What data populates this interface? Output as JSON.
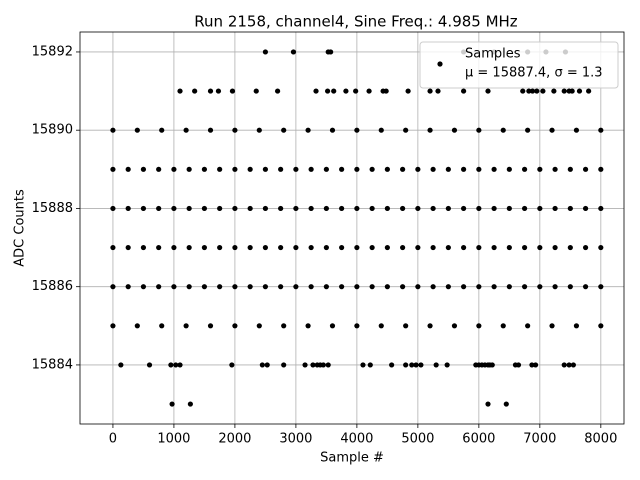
{
  "chart_data": {
    "type": "scatter",
    "title": "Run 2158, channel4, Sine Freq.: 4.985 MHz",
    "x_label": "Sample #",
    "y_label": "ADC Counts",
    "legend_note": "μ = 15887.4, σ = 1.3",
    "legend_position": "upper right",
    "grid": true,
    "xlim": [
      -540,
      8380
    ],
    "xticks": [
      0,
      1000,
      2000,
      3000,
      4000,
      5000,
      6000,
      7000,
      8000
    ],
    "ylim": [
      15882.49,
      15892.51
    ],
    "yticks": [
      15884,
      15886,
      15888,
      15890,
      15892
    ],
    "series": [
      {
        "name": "Samples",
        "color": "#000000",
        "x": [
          0,
          250,
          500,
          750,
          1000,
          1250,
          1500,
          1750,
          2000,
          2250,
          2500,
          2750,
          3000,
          3250,
          3500,
          3750,
          4000,
          4250,
          4500,
          4750,
          5000,
          5250,
          5500,
          5750,
          6000,
          6250,
          6500,
          6750,
          7000,
          7250,
          7500,
          7750,
          8000,
          0,
          250,
          500,
          750,
          1000,
          1250,
          1500,
          1750,
          2000,
          2250,
          2500,
          2750,
          3000,
          3250,
          3500,
          3750,
          4000,
          4250,
          4500,
          4750,
          5000,
          5250,
          5500,
          5750,
          6000,
          6250,
          6500,
          6750,
          7000,
          7250,
          7500,
          7750,
          8000,
          0,
          250,
          500,
          750,
          1000,
          1250,
          1500,
          1750,
          2000,
          2250,
          2500,
          2750,
          3000,
          3250,
          3500,
          3750,
          4000,
          4250,
          4500,
          4750,
          5000,
          5250,
          5500,
          5750,
          6000,
          6250,
          6500,
          6750,
          7000,
          7250,
          7500,
          7750,
          8000,
          0,
          250,
          500,
          750,
          1000,
          1250,
          1500,
          1750,
          2000,
          2250,
          2500,
          2750,
          3000,
          3250,
          3500,
          3750,
          4000,
          4250,
          4500,
          4750,
          5000,
          5250,
          5500,
          5750,
          6000,
          6250,
          6500,
          6750,
          7000,
          7250,
          7500,
          7750,
          8000,
          0,
          400,
          800,
          1200,
          1600,
          2000,
          2400,
          2800,
          3200,
          3600,
          4000,
          4400,
          4800,
          5200,
          5600,
          6000,
          6400,
          6800,
          7200,
          7600,
          8000,
          0,
          400,
          800,
          1200,
          1600,
          2000,
          2400,
          2800,
          3200,
          3600,
          4000,
          4400,
          4800,
          5200,
          5600,
          6000,
          6400,
          6800,
          7200,
          7600,
          8000,
          2500,
          2960,
          3530,
          3570,
          5750,
          6250,
          6800,
          7100,
          7420,
          1100,
          1340,
          1600,
          1730,
          1960,
          2350,
          2700,
          3330,
          3520,
          3620,
          3820,
          3980,
          4200,
          4430,
          4480,
          4840,
          5200,
          5330,
          5750,
          6150,
          6720,
          6820,
          6880,
          6950,
          7050,
          7230,
          7400,
          7480,
          7530,
          7650,
          7800,
          130,
          600,
          950,
          1030,
          1100,
          1950,
          2450,
          2530,
          2800,
          3150,
          3280,
          3350,
          3400,
          3450,
          3530,
          4100,
          4220,
          4570,
          4800,
          4900,
          4970,
          5050,
          5300,
          5480,
          5950,
          6000,
          6050,
          6100,
          6150,
          6180,
          6220,
          6600,
          6650,
          6870,
          6930,
          7400,
          7480,
          7550,
          970,
          1270,
          6150,
          6450
        ],
        "values": [
          15889,
          15889,
          15889,
          15889,
          15889,
          15889,
          15889,
          15889,
          15889,
          15889,
          15889,
          15889,
          15889,
          15889,
          15889,
          15889,
          15889,
          15889,
          15889,
          15889,
          15889,
          15889,
          15889,
          15889,
          15889,
          15889,
          15889,
          15889,
          15889,
          15889,
          15889,
          15889,
          15889,
          15888,
          15888,
          15888,
          15888,
          15888,
          15888,
          15888,
          15888,
          15888,
          15888,
          15888,
          15888,
          15888,
          15888,
          15888,
          15888,
          15888,
          15888,
          15888,
          15888,
          15888,
          15888,
          15888,
          15888,
          15888,
          15888,
          15888,
          15888,
          15888,
          15888,
          15888,
          15888,
          15888,
          15887,
          15887,
          15887,
          15887,
          15887,
          15887,
          15887,
          15887,
          15887,
          15887,
          15887,
          15887,
          15887,
          15887,
          15887,
          15887,
          15887,
          15887,
          15887,
          15887,
          15887,
          15887,
          15887,
          15887,
          15887,
          15887,
          15887,
          15887,
          15887,
          15887,
          15887,
          15887,
          15887,
          15886,
          15886,
          15886,
          15886,
          15886,
          15886,
          15886,
          15886,
          15886,
          15886,
          15886,
          15886,
          15886,
          15886,
          15886,
          15886,
          15886,
          15886,
          15886,
          15886,
          15886,
          15886,
          15886,
          15886,
          15886,
          15886,
          15886,
          15886,
          15886,
          15886,
          15886,
          15886,
          15886,
          15890,
          15890,
          15890,
          15890,
          15890,
          15890,
          15890,
          15890,
          15890,
          15890,
          15890,
          15890,
          15890,
          15890,
          15890,
          15890,
          15890,
          15890,
          15890,
          15890,
          15890,
          15885,
          15885,
          15885,
          15885,
          15885,
          15885,
          15885,
          15885,
          15885,
          15885,
          15885,
          15885,
          15885,
          15885,
          15885,
          15885,
          15885,
          15885,
          15885,
          15885,
          15885,
          15892,
          15892,
          15892,
          15892,
          15892,
          15892,
          15892,
          15892,
          15892,
          15891,
          15891,
          15891,
          15891,
          15891,
          15891,
          15891,
          15891,
          15891,
          15891,
          15891,
          15891,
          15891,
          15891,
          15891,
          15891,
          15891,
          15891,
          15891,
          15891,
          15891,
          15891,
          15891,
          15891,
          15891,
          15891,
          15891,
          15891,
          15891,
          15891,
          15891,
          15884,
          15884,
          15884,
          15884,
          15884,
          15884,
          15884,
          15884,
          15884,
          15884,
          15884,
          15884,
          15884,
          15884,
          15884,
          15884,
          15884,
          15884,
          15884,
          15884,
          15884,
          15884,
          15884,
          15884,
          15884,
          15884,
          15884,
          15884,
          15884,
          15884,
          15884,
          15884,
          15884,
          15884,
          15884,
          15884,
          15884,
          15884,
          15883,
          15883,
          15883,
          15883
        ]
      }
    ]
  }
}
